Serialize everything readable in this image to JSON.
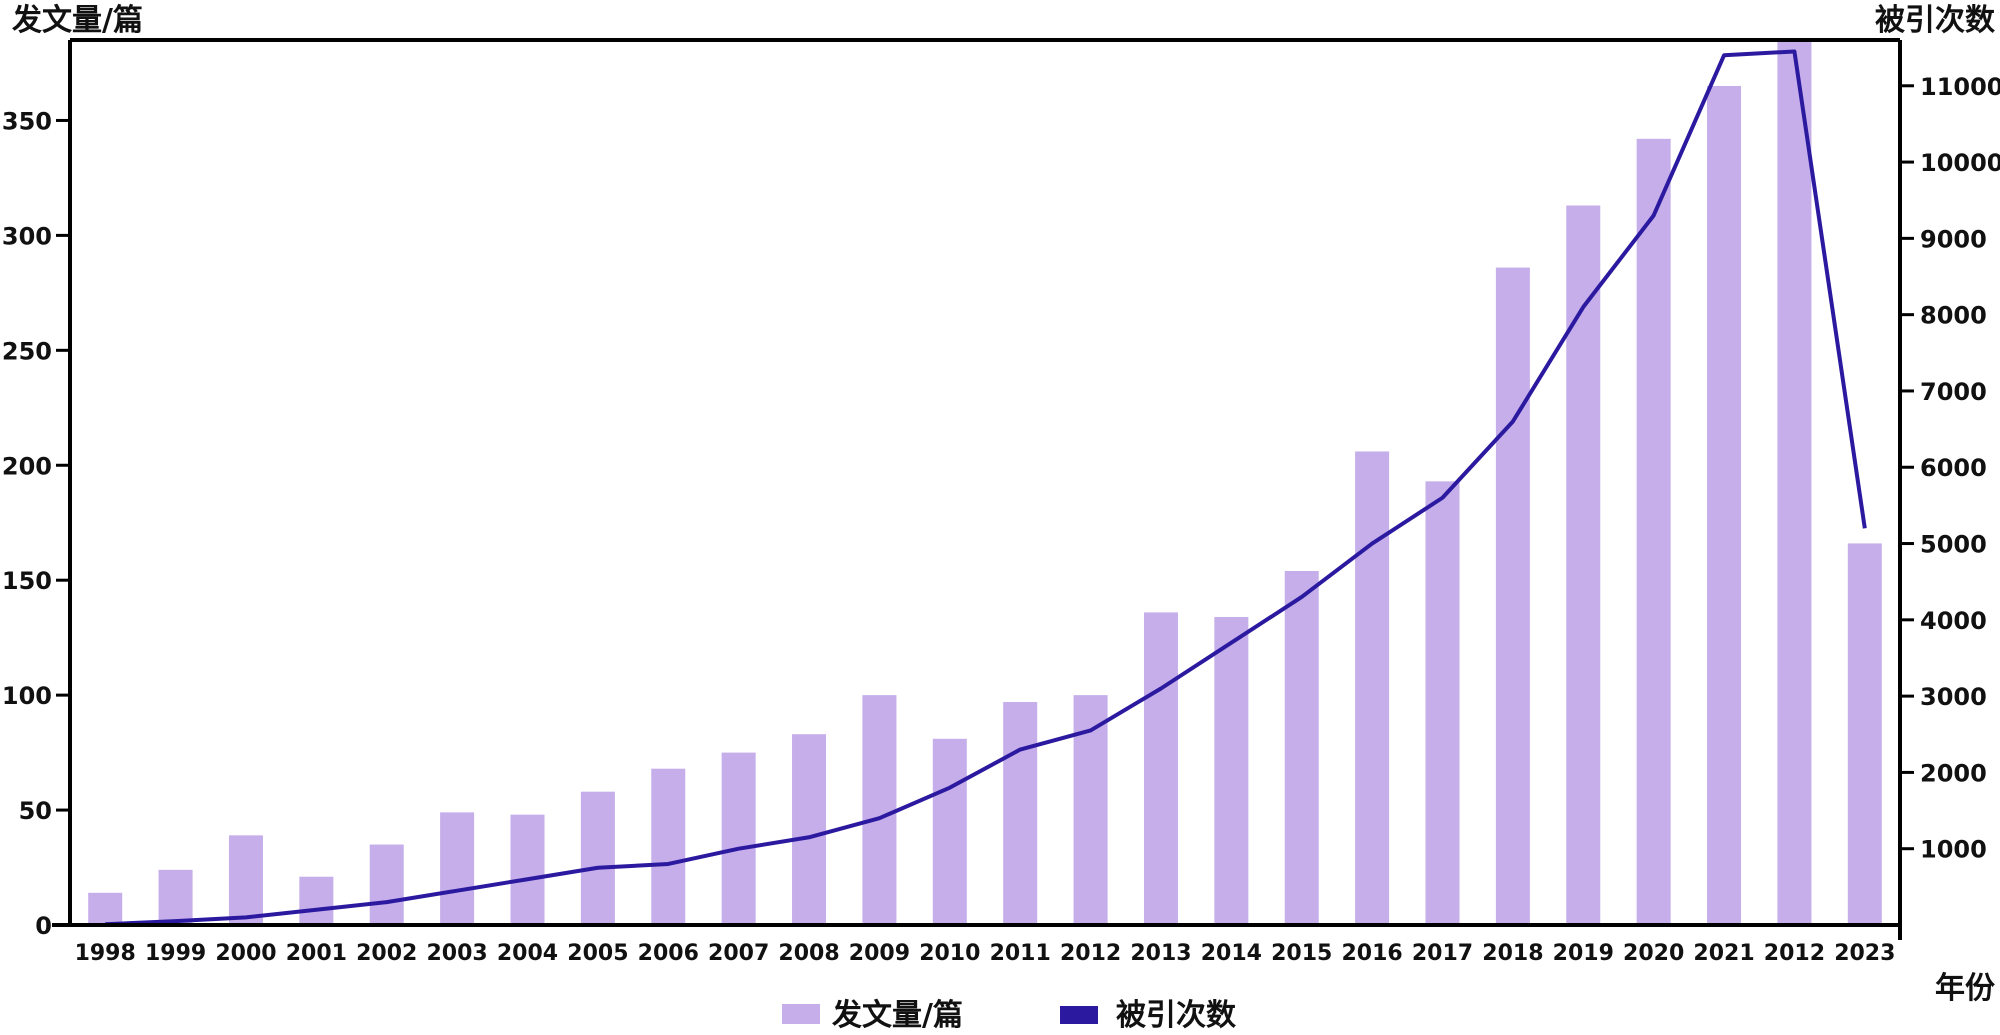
{
  "chart_data": {
    "type": "bar",
    "title": "",
    "categories": [
      "1998",
      "1999",
      "2000",
      "2001",
      "2002",
      "2003",
      "2004",
      "2005",
      "2006",
      "2007",
      "2008",
      "2009",
      "2010",
      "2011",
      "2012",
      "2013",
      "2014",
      "2015",
      "2016",
      "2017",
      "2018",
      "2019",
      "2020",
      "2021",
      "2012",
      "2023"
    ],
    "xlabel": "年份",
    "ylabel": "发文量/篇",
    "y2label": "被引次数",
    "ylim": [
      0,
      385
    ],
    "y2lim": [
      0,
      11600
    ],
    "yticks": [
      0,
      50,
      100,
      150,
      200,
      250,
      300,
      350
    ],
    "y2ticks": [
      1000,
      2000,
      3000,
      4000,
      5000,
      6000,
      7000,
      8000,
      9000,
      10000,
      11000
    ],
    "grid": false,
    "legend_position": "bottom",
    "series": [
      {
        "name": "发文量/篇",
        "type": "bar",
        "axis": "left",
        "color": "#c5aeea",
        "values": [
          14,
          24,
          39,
          21,
          35,
          49,
          48,
          58,
          68,
          75,
          83,
          100,
          81,
          97,
          100,
          136,
          134,
          154,
          206,
          193,
          286,
          313,
          342,
          365,
          385,
          166
        ]
      },
      {
        "name": "被引次数",
        "type": "line",
        "axis": "right",
        "color": "#2b1aa0",
        "values": [
          10,
          50,
          100,
          200,
          300,
          450,
          600,
          750,
          800,
          1000,
          1150,
          1400,
          1800,
          2300,
          2550,
          3100,
          3700,
          4300,
          5000,
          5600,
          6600,
          8100,
          9300,
          11400,
          11450,
          5200
        ]
      }
    ]
  }
}
